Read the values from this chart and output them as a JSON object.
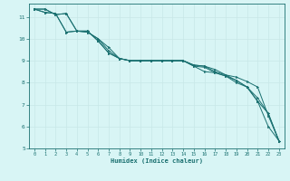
{
  "xlabel": "Humidex (Indice chaleur)",
  "background_color": "#d8f5f5",
  "line_color": "#1a7070",
  "grid_color": "#c8e8e8",
  "xlim": [
    -0.5,
    23.5
  ],
  "ylim": [
    5,
    11.6
  ],
  "xticks": [
    0,
    1,
    2,
    3,
    4,
    5,
    6,
    7,
    8,
    9,
    10,
    11,
    12,
    13,
    14,
    15,
    16,
    17,
    18,
    19,
    20,
    21,
    22,
    23
  ],
  "yticks": [
    5,
    6,
    7,
    8,
    9,
    10,
    11
  ],
  "series": [
    [
      11.35,
      11.35,
      11.1,
      11.15,
      10.35,
      10.3,
      10.0,
      9.6,
      9.1,
      9.0,
      9.0,
      9.0,
      9.0,
      9.0,
      9.0,
      8.8,
      8.75,
      8.6,
      8.35,
      8.25,
      8.05,
      7.8,
      6.5,
      5.35
    ],
    [
      11.35,
      11.35,
      11.1,
      11.15,
      10.35,
      10.3,
      10.0,
      9.45,
      9.1,
      9.0,
      9.0,
      9.0,
      9.0,
      9.0,
      9.0,
      8.8,
      8.75,
      8.5,
      8.35,
      8.1,
      7.8,
      7.3,
      6.6,
      5.35
    ],
    [
      11.35,
      11.2,
      11.15,
      10.3,
      10.35,
      10.35,
      9.9,
      9.35,
      9.1,
      9.0,
      9.0,
      9.0,
      9.0,
      9.0,
      9.0,
      8.75,
      8.7,
      8.45,
      8.3,
      8.1,
      7.8,
      7.15,
      6.6,
      5.35
    ],
    [
      11.35,
      11.2,
      11.15,
      10.3,
      10.35,
      10.35,
      9.9,
      9.35,
      9.1,
      9.0,
      9.0,
      9.0,
      9.0,
      9.0,
      9.0,
      8.75,
      8.5,
      8.45,
      8.3,
      8.0,
      7.8,
      7.15,
      6.0,
      5.35
    ]
  ]
}
